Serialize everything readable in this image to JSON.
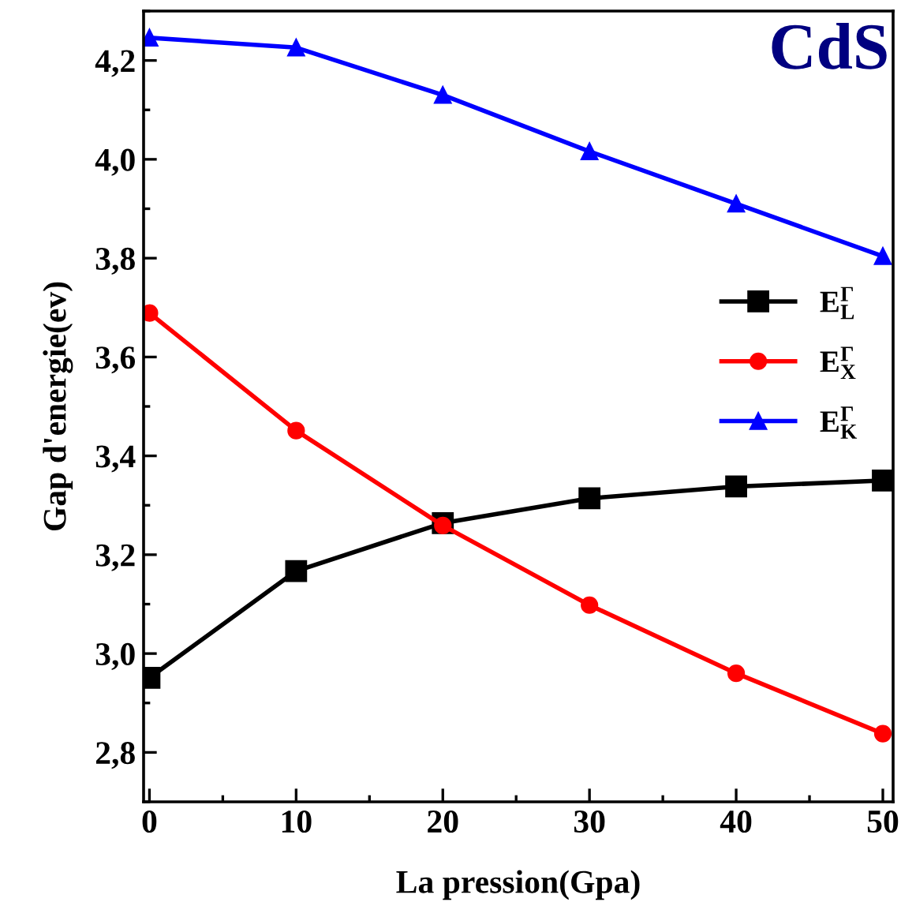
{
  "chart_data": {
    "type": "line",
    "xlabel": "La pression(Gpa)",
    "ylabel": "Gap d'energie(ev)",
    "annotations": [
      "CdS"
    ],
    "x": [
      0,
      10,
      20,
      30,
      40,
      50
    ],
    "series": [
      {
        "name": "E$^{Γ}$$_{L}$",
        "color": "#000000",
        "marker": "square",
        "values": [
          2.951,
          3.167,
          3.264,
          3.314,
          3.338,
          3.35
        ]
      },
      {
        "name": "E$^{Γ}$$_{X}$",
        "color": "#ff0000",
        "marker": "circle",
        "values": [
          3.689,
          3.451,
          3.259,
          3.098,
          2.96,
          2.838
        ]
      },
      {
        "name": "E$^{Γ}$$_{K}$",
        "color": "#0000ff",
        "marker": "triangle",
        "values": [
          4.246,
          4.226,
          4.13,
          4.016,
          3.91,
          3.804
        ]
      }
    ],
    "xlim": [
      -0.4,
      50.7
    ],
    "ylim": [
      2.7,
      4.3
    ],
    "xticks": [
      0,
      10,
      20,
      30,
      40,
      50
    ],
    "yticks": [
      {
        "value": 2.8,
        "label": "2,8"
      },
      {
        "value": 3.0,
        "label": "3,0"
      },
      {
        "value": 3.2,
        "label": "3,2"
      },
      {
        "value": 3.4,
        "label": "3,4"
      },
      {
        "value": 3.6,
        "label": "3,6"
      },
      {
        "value": 3.8,
        "label": "3,8"
      },
      {
        "value": 4.0,
        "label": "4,0"
      },
      {
        "value": 4.2,
        "label": "4,2"
      }
    ],
    "grid": false,
    "legend": "right",
    "line_style": "solid"
  }
}
